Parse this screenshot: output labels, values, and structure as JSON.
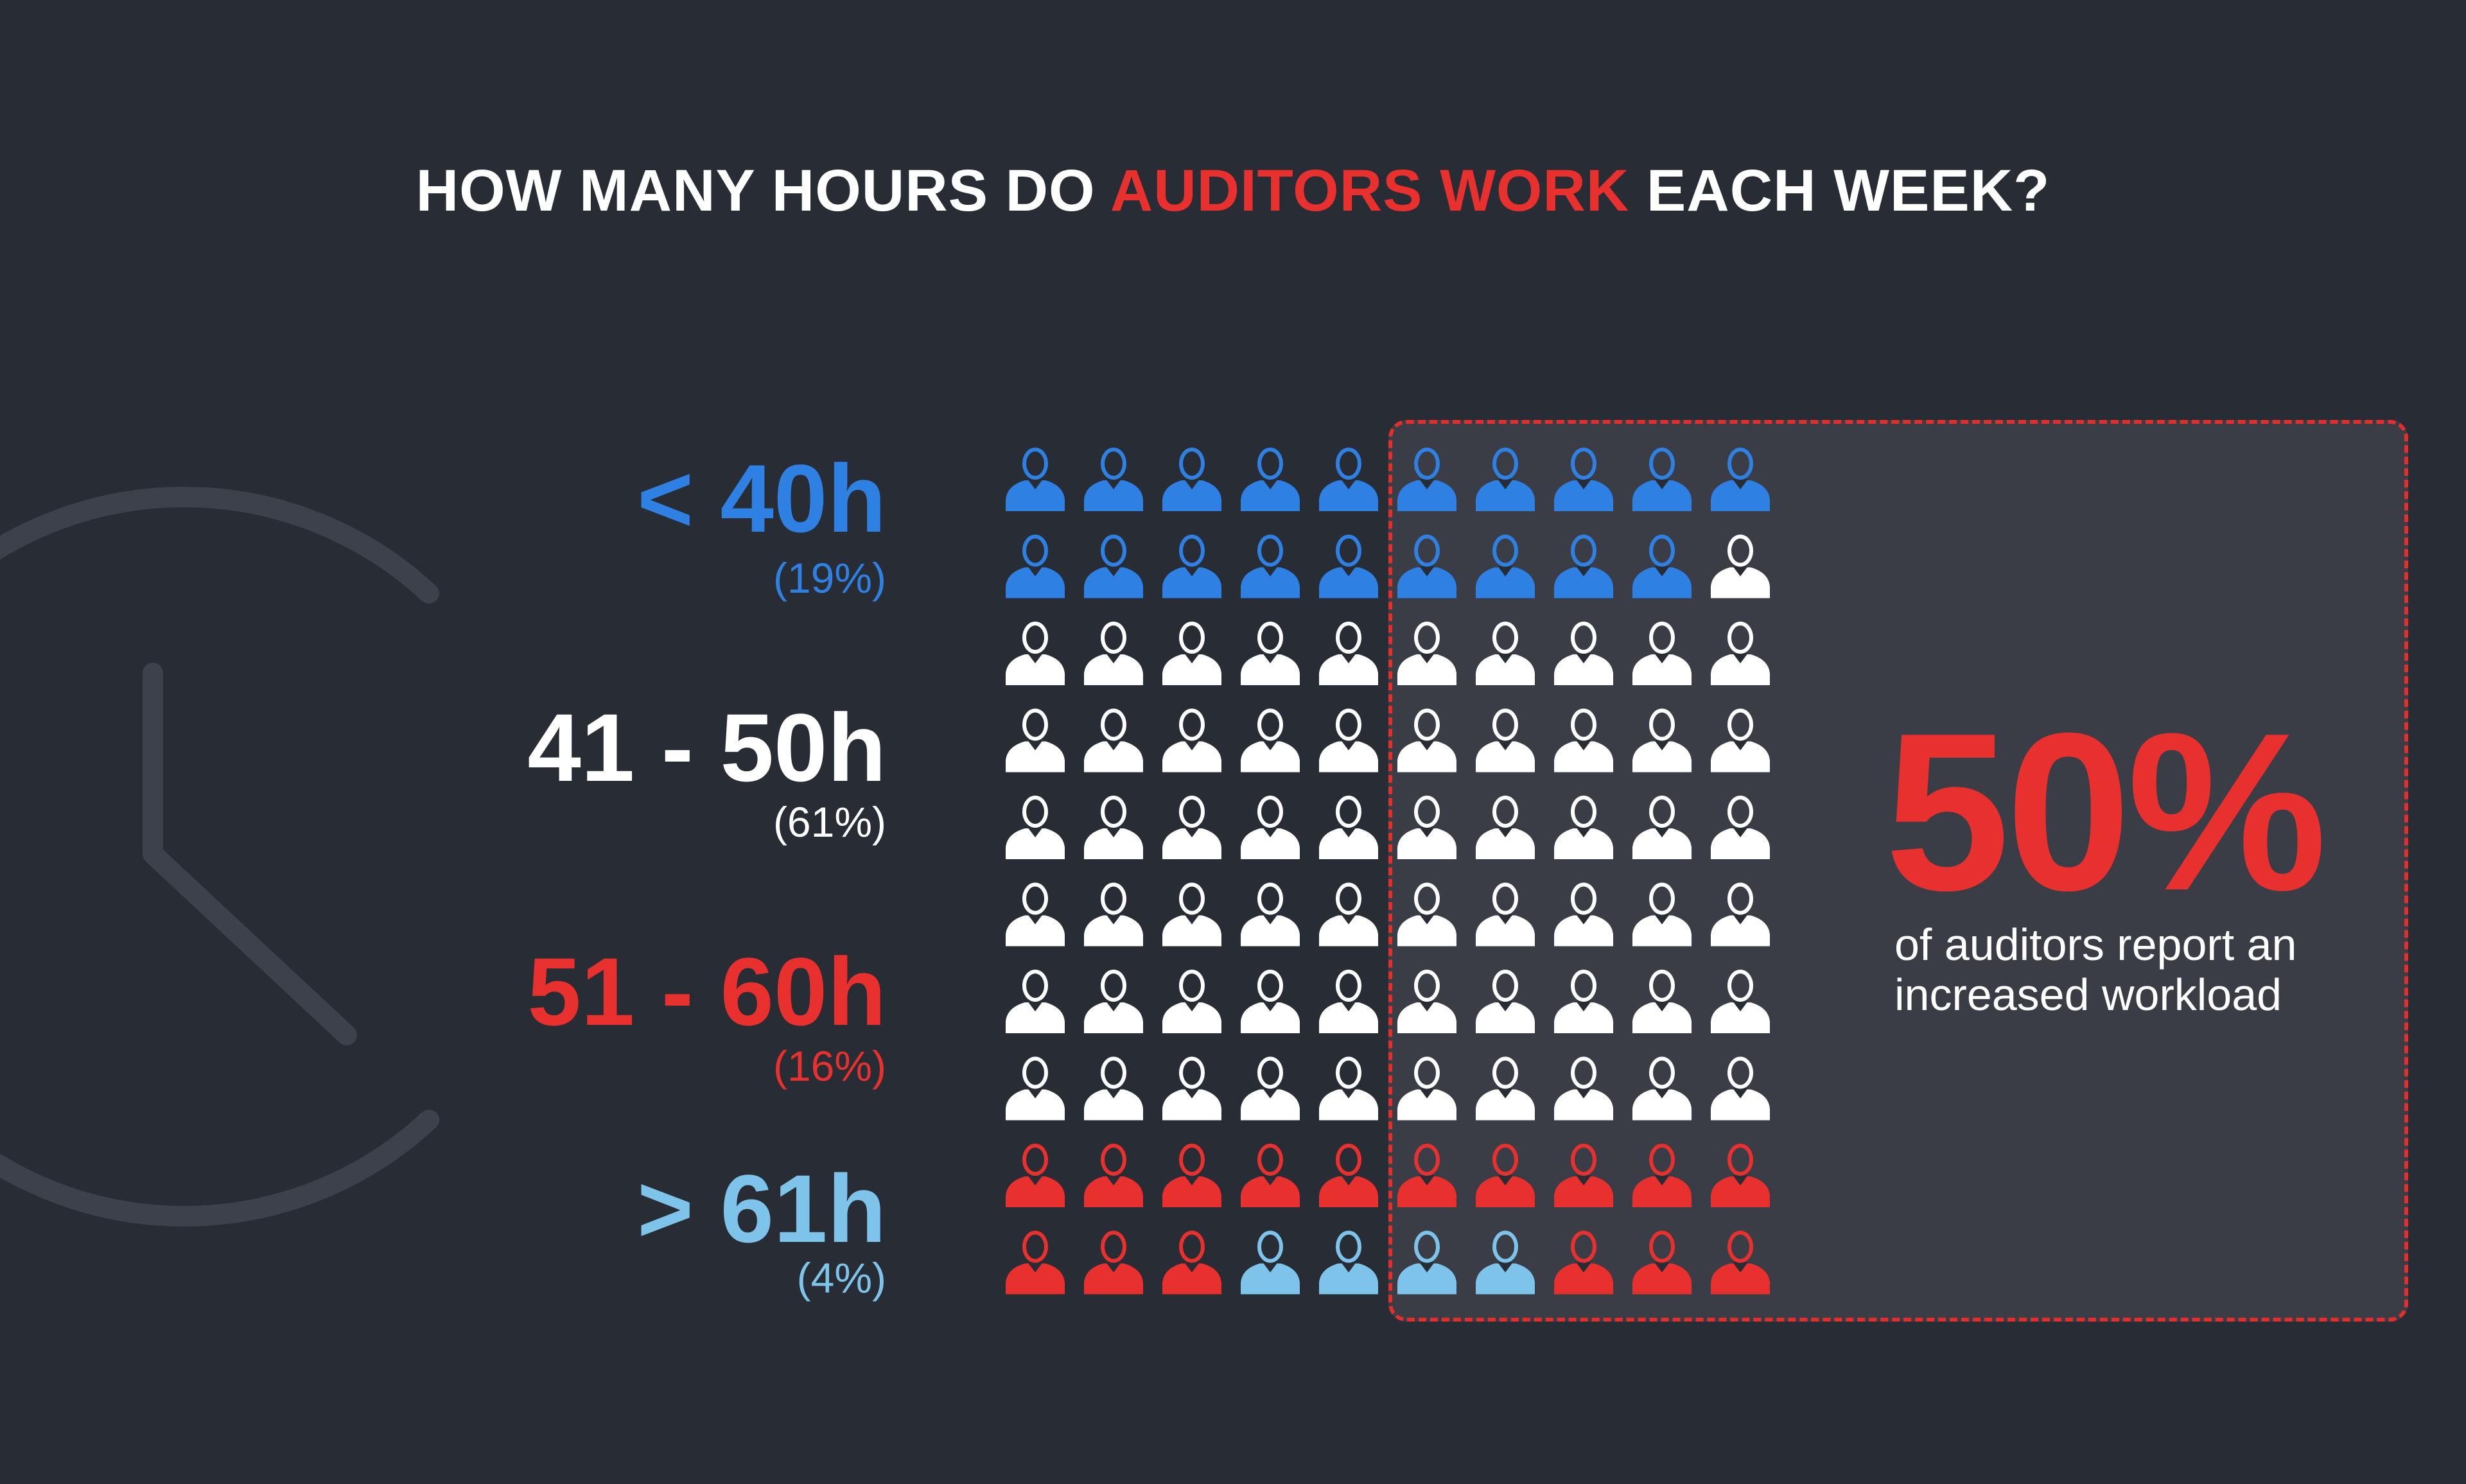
{
  "title": {
    "part1": "HOW MANY HOURS DO ",
    "highlight": "AUDITORS WORK",
    "part2": " EACH WEEK?"
  },
  "categories": [
    {
      "label": "< 40h",
      "percent_label": "(19%)",
      "value": 19,
      "color": "#2e80e3"
    },
    {
      "label": "41 - 50h",
      "percent_label": "(61%)",
      "value": 61,
      "color": "#ffffff"
    },
    {
      "label": "51 - 60h",
      "percent_label": "(16%)",
      "value": 16,
      "color": "#e8302e"
    },
    {
      "label": "> 61h",
      "percent_label": "(4%)",
      "value": 4,
      "color": "#7dc3ea"
    }
  ],
  "chart_data": {
    "type": "pictogram",
    "title": "HOW MANY HOURS DO AUDITORS WORK EACH WEEK?",
    "unit": "percent of auditors (1 icon = 1%)",
    "grid": {
      "rows": 10,
      "cols": 10
    },
    "categories": [
      "< 40h",
      "41 - 50h",
      "51 - 60h",
      "> 61h"
    ],
    "values": [
      19,
      61,
      16,
      4
    ],
    "colors": [
      "#2e80e3",
      "#ffffff",
      "#e8302e",
      "#7dc3ea"
    ],
    "icon_colors": [
      [
        "c0",
        "c0",
        "c0",
        "c0",
        "c0",
        "c0",
        "c0",
        "c0",
        "c0",
        "c0"
      ],
      [
        "c0",
        "c0",
        "c0",
        "c0",
        "c0",
        "c0",
        "c0",
        "c0",
        "c0",
        "c1"
      ],
      [
        "c1",
        "c1",
        "c1",
        "c1",
        "c1",
        "c1",
        "c1",
        "c1",
        "c1",
        "c1"
      ],
      [
        "c1",
        "c1",
        "c1",
        "c1",
        "c1",
        "c1",
        "c1",
        "c1",
        "c1",
        "c1"
      ],
      [
        "c1",
        "c1",
        "c1",
        "c1",
        "c1",
        "c1",
        "c1",
        "c1",
        "c1",
        "c1"
      ],
      [
        "c1",
        "c1",
        "c1",
        "c1",
        "c1",
        "c1",
        "c1",
        "c1",
        "c1",
        "c1"
      ],
      [
        "c1",
        "c1",
        "c1",
        "c1",
        "c1",
        "c1",
        "c1",
        "c1",
        "c1",
        "c1"
      ],
      [
        "c1",
        "c1",
        "c1",
        "c1",
        "c1",
        "c1",
        "c1",
        "c1",
        "c1",
        "c1"
      ],
      [
        "c2",
        "c2",
        "c2",
        "c2",
        "c2",
        "c2",
        "c2",
        "c2",
        "c2",
        "c2"
      ],
      [
        "c2",
        "c2",
        "c2",
        "c3",
        "c3",
        "c3",
        "c3",
        "c2",
        "c2",
        "c2"
      ]
    ],
    "highlight_region": {
      "from_col": 5,
      "to_col": 10
    }
  },
  "callout": {
    "value": "50%",
    "text": "of auditors report an increased workload"
  },
  "decor": {
    "clock_color": "#3d414b",
    "icon": "clock-icon"
  }
}
